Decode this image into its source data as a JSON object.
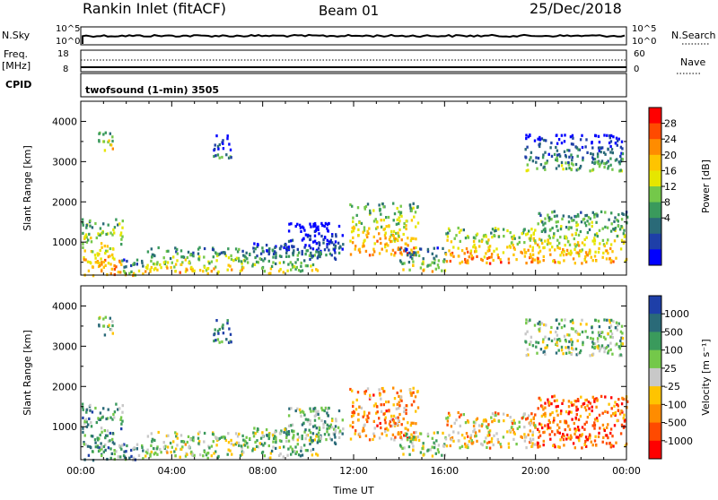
{
  "header": {
    "station": "Rankin Inlet (fitACF)",
    "beam": "Beam 01",
    "date": "25/Dec/2018"
  },
  "strips": {
    "nsky_label": "N.Sky",
    "nsky_ticks": [
      "10^5",
      "10^0"
    ],
    "nsearch_label": "N.Search",
    "nsearch_ticks": [
      "10^5",
      "10^0"
    ],
    "freq_label_line1": "Freq.",
    "freq_label_line2": "[MHz]",
    "freq_ticks": [
      "18",
      "8"
    ],
    "nave_label": "Nave",
    "nave_ticks": [
      "60",
      "0"
    ],
    "cpid_label": "CPID",
    "cpid_value": "twofsound (1-min) 3505"
  },
  "chart_data": [
    {
      "type": "heatmap",
      "name": "power",
      "ylabel": "Slant Range [km]",
      "yticks": [
        1000,
        2000,
        3000,
        4000
      ],
      "ylim": [
        180,
        4500
      ],
      "xlim": [
        0,
        24
      ],
      "xticks": [
        "00:00",
        "04:00",
        "08:00",
        "12:00",
        "16:00",
        "20:00",
        "00:00"
      ],
      "colorbar": {
        "label": "Power [dB]",
        "ticks": [
          "28",
          "24",
          "20",
          "16",
          "12",
          "8",
          "4"
        ],
        "colors": [
          "#ff0000",
          "#ff4a00",
          "#ff8c00",
          "#ffc400",
          "#e6e600",
          "#74c84a",
          "#3a9a5c",
          "#2a6a78",
          "#1e3fa8",
          "#0000ff"
        ]
      },
      "blobs": [
        {
          "t0": 0.0,
          "t1": 1.8,
          "r0": 200,
          "r1": 1600,
          "v": 24
        },
        {
          "t0": 0.7,
          "t1": 1.4,
          "r0": 3300,
          "r1": 3800,
          "v": 22
        },
        {
          "t0": 1.5,
          "t1": 2.8,
          "r0": 200,
          "r1": 600,
          "v": 18
        },
        {
          "t0": 2.8,
          "t1": 7.5,
          "r0": 250,
          "r1": 900,
          "v": 21
        },
        {
          "t0": 5.8,
          "t1": 6.6,
          "r0": 3100,
          "r1": 3700,
          "v": 10
        },
        {
          "t0": 7.5,
          "t1": 10.5,
          "r0": 250,
          "r1": 1000,
          "v": 17
        },
        {
          "t0": 9.0,
          "t1": 11.5,
          "r0": 600,
          "r1": 1500,
          "v": 9
        },
        {
          "t0": 11.8,
          "t1": 14.8,
          "r0": 700,
          "r1": 2000,
          "v": 24
        },
        {
          "t0": 14.0,
          "t1": 16.0,
          "r0": 300,
          "r1": 900,
          "v": 18
        },
        {
          "t0": 16.0,
          "t1": 20.0,
          "r0": 500,
          "r1": 1400,
          "v": 25
        },
        {
          "t0": 20.0,
          "t1": 24.0,
          "r0": 500,
          "r1": 1800,
          "v": 22
        },
        {
          "t0": 19.5,
          "t1": 23.8,
          "r0": 2800,
          "r1": 3700,
          "v": 13
        }
      ]
    },
    {
      "type": "heatmap",
      "name": "velocity",
      "ylabel": "Slant Range [km]",
      "yticks": [
        1000,
        2000,
        3000,
        4000
      ],
      "ylim": [
        180,
        4500
      ],
      "xlim": [
        0,
        24
      ],
      "xticks": [
        "00:00",
        "04:00",
        "08:00",
        "12:00",
        "16:00",
        "20:00",
        "00:00"
      ],
      "xlabel": "Time UT",
      "colorbar": {
        "label": "Velocity [m s⁻¹]",
        "ticks": [
          "1000",
          "500",
          "100",
          "25",
          "-25",
          "-100",
          "-500",
          "-1000"
        ],
        "colors": [
          "#1e3fa8",
          "#2a6a78",
          "#3a9a5c",
          "#74c84a",
          "#c8c8c8",
          "#ffc400",
          "#ff8c00",
          "#ff4a00",
          "#ff0000"
        ]
      },
      "blobs": [
        {
          "t0": 0.0,
          "t1": 1.8,
          "r0": 200,
          "r1": 1600,
          "v": 0.3
        },
        {
          "t0": 0.7,
          "t1": 1.4,
          "r0": 3300,
          "r1": 3800,
          "v": 0.4
        },
        {
          "t0": 1.5,
          "t1": 2.8,
          "r0": 200,
          "r1": 600,
          "v": 0.3
        },
        {
          "t0": 2.8,
          "t1": 7.5,
          "r0": 250,
          "r1": 900,
          "v": 0.45
        },
        {
          "t0": 5.8,
          "t1": 6.6,
          "r0": 3100,
          "r1": 3700,
          "v": 0.15
        },
        {
          "t0": 7.5,
          "t1": 10.5,
          "r0": 250,
          "r1": 1000,
          "v": 0.4
        },
        {
          "t0": 9.0,
          "t1": 11.5,
          "r0": 600,
          "r1": 1500,
          "v": 0.35
        },
        {
          "t0": 11.8,
          "t1": 14.8,
          "r0": 700,
          "r1": 2000,
          "v": 0.7
        },
        {
          "t0": 14.0,
          "t1": 16.0,
          "r0": 300,
          "r1": 900,
          "v": 0.45
        },
        {
          "t0": 16.0,
          "t1": 20.0,
          "r0": 500,
          "r1": 1400,
          "v": 0.6
        },
        {
          "t0": 20.0,
          "t1": 24.0,
          "r0": 500,
          "r1": 1800,
          "v": 0.8
        },
        {
          "t0": 19.5,
          "t1": 23.8,
          "r0": 2800,
          "r1": 3700,
          "v": 0.4
        }
      ]
    }
  ]
}
